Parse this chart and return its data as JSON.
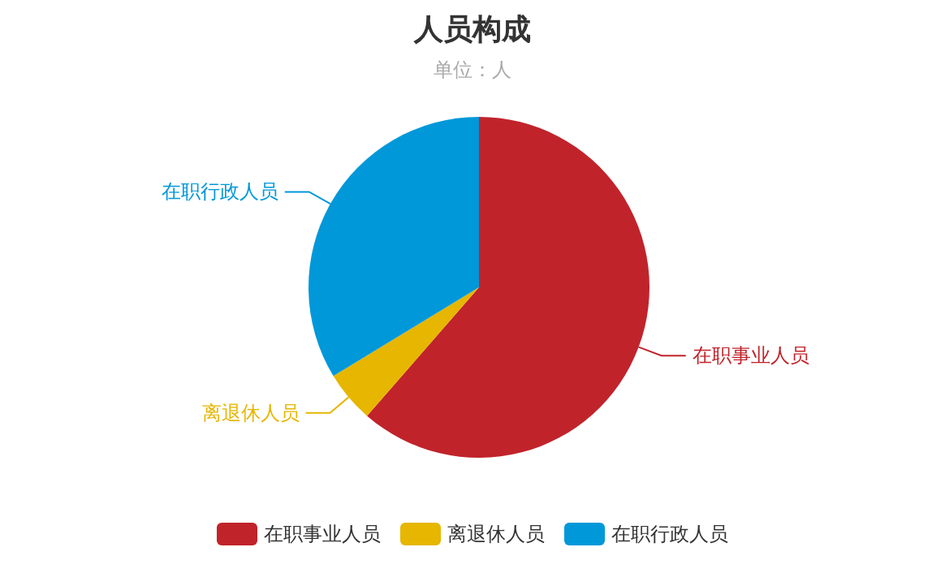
{
  "chart_data": {
    "type": "pie",
    "title": "人员构成",
    "subtitle": "单位：人",
    "categories": [
      "在职事业人员",
      "离退休人员",
      "在职行政人员"
    ],
    "values": [
      61.4,
      4.9,
      33.7
    ],
    "colors": [
      "#c1232b",
      "#e6b600",
      "#0098d9"
    ],
    "legend": "bottom"
  }
}
